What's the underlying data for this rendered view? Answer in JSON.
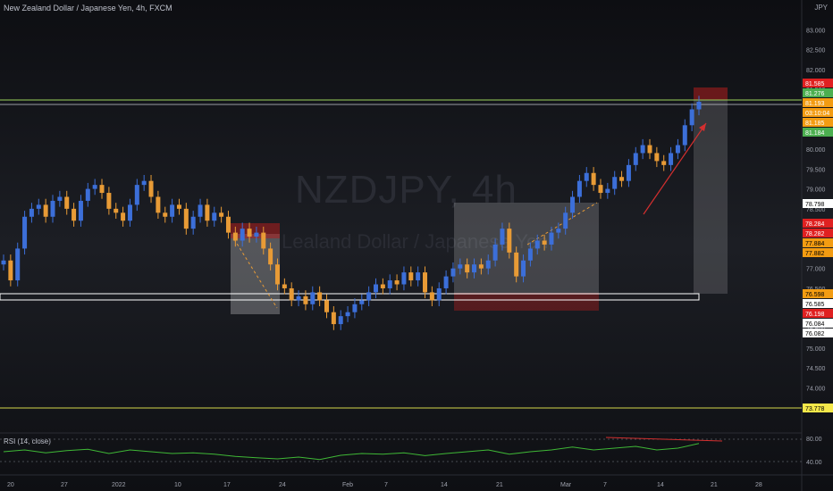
{
  "header": {
    "title": "New Zealand Dollar / Japanese Yen, 4h, FXCM",
    "currency": "JPY"
  },
  "watermark": {
    "symbol": "NZDJPY, 4h",
    "name": "Lealand Dollar / Japanese Yen"
  },
  "rsi": {
    "label": "RSI (14, close)",
    "ticks": [
      "80.00",
      "40.00"
    ]
  },
  "colors": {
    "up": "#3c6fd9",
    "down": "#e89b36",
    "rsi_line": "#3fb836",
    "resistance": "#9bd15b",
    "support_box": "#ffffff",
    "low_line": "#d6d84a",
    "arrow": "#d32f2f"
  },
  "chart_data": {
    "type": "candlestick",
    "title": "New Zealand Dollar / Japanese Yen, 4h, FXCM",
    "y_ticks": [
      "83.000",
      "82.500",
      "82.000",
      "81.500",
      "80.000",
      "79.500",
      "79.000",
      "78.500",
      "77.000",
      "76.500",
      "75.500",
      "75.000",
      "74.500",
      "74.000",
      "73.500"
    ],
    "x_ticks": [
      "20",
      "27",
      "2022",
      "10",
      "17",
      "24",
      "Feb",
      "7",
      "14",
      "21",
      "Mar",
      "7",
      "14",
      "21",
      "28"
    ],
    "ylim": [
      73.2,
      83.3
    ],
    "close_path": [
      [
        0,
        77.2
      ],
      [
        1,
        76.7
      ],
      [
        2,
        77.5
      ],
      [
        3,
        78.3
      ],
      [
        4,
        78.5
      ],
      [
        5,
        78.6
      ],
      [
        6,
        78.3
      ],
      [
        7,
        78.7
      ],
      [
        8,
        78.8
      ],
      [
        9,
        78.5
      ],
      [
        10,
        78.2
      ],
      [
        11,
        78.7
      ],
      [
        12,
        79.0
      ],
      [
        13,
        79.1
      ],
      [
        14,
        78.9
      ],
      [
        15,
        78.5
      ],
      [
        16,
        78.4
      ],
      [
        17,
        78.2
      ],
      [
        18,
        78.6
      ],
      [
        19,
        79.1
      ],
      [
        20,
        79.2
      ],
      [
        21,
        78.8
      ],
      [
        22,
        78.4
      ],
      [
        23,
        78.3
      ],
      [
        24,
        78.6
      ],
      [
        25,
        78.5
      ],
      [
        26,
        78.0
      ],
      [
        27,
        78.3
      ],
      [
        28,
        78.6
      ],
      [
        29,
        78.2
      ],
      [
        30,
        78.4
      ],
      [
        31,
        78.3
      ],
      [
        32,
        77.9
      ],
      [
        33,
        77.7
      ],
      [
        34,
        78.0
      ],
      [
        35,
        77.8
      ],
      [
        36,
        77.9
      ],
      [
        37,
        77.5
      ],
      [
        38,
        77.1
      ],
      [
        39,
        76.6
      ],
      [
        40,
        76.5
      ],
      [
        41,
        76.2
      ],
      [
        42,
        76.3
      ],
      [
        43,
        76.1
      ],
      [
        44,
        76.4
      ],
      [
        45,
        76.2
      ],
      [
        46,
        75.9
      ],
      [
        47,
        75.6
      ],
      [
        48,
        75.8
      ],
      [
        49,
        75.9
      ],
      [
        50,
        76.1
      ],
      [
        51,
        76.2
      ],
      [
        52,
        76.4
      ],
      [
        53,
        76.6
      ],
      [
        54,
        76.5
      ],
      [
        55,
        76.7
      ],
      [
        56,
        76.6
      ],
      [
        57,
        76.9
      ],
      [
        58,
        76.7
      ],
      [
        59,
        76.9
      ],
      [
        60,
        76.4
      ],
      [
        61,
        76.2
      ],
      [
        62,
        76.5
      ],
      [
        63,
        76.8
      ],
      [
        64,
        77.0
      ],
      [
        65,
        77.1
      ],
      [
        66,
        76.9
      ],
      [
        67,
        77.1
      ],
      [
        68,
        77.0
      ],
      [
        69,
        77.2
      ],
      [
        70,
        77.6
      ],
      [
        71,
        78.0
      ],
      [
        72,
        77.4
      ],
      [
        73,
        76.8
      ],
      [
        74,
        77.2
      ],
      [
        75,
        77.5
      ],
      [
        76,
        77.7
      ],
      [
        77,
        77.6
      ],
      [
        78,
        77.9
      ],
      [
        79,
        78.0
      ],
      [
        80,
        78.4
      ],
      [
        81,
        78.8
      ],
      [
        82,
        79.2
      ],
      [
        83,
        79.4
      ],
      [
        84,
        79.1
      ],
      [
        85,
        78.9
      ],
      [
        86,
        79.0
      ],
      [
        87,
        79.3
      ],
      [
        88,
        79.2
      ],
      [
        89,
        79.6
      ],
      [
        90,
        79.9
      ],
      [
        91,
        80.1
      ],
      [
        92,
        79.9
      ],
      [
        93,
        79.7
      ],
      [
        94,
        79.6
      ],
      [
        95,
        79.9
      ],
      [
        96,
        80.1
      ],
      [
        97,
        80.6
      ],
      [
        98,
        81.0
      ],
      [
        99,
        81.19
      ]
    ],
    "rsi_path": [
      [
        0,
        0.55
      ],
      [
        3,
        0.6
      ],
      [
        6,
        0.52
      ],
      [
        9,
        0.58
      ],
      [
        12,
        0.62
      ],
      [
        15,
        0.5
      ],
      [
        18,
        0.6
      ],
      [
        21,
        0.55
      ],
      [
        24,
        0.5
      ],
      [
        27,
        0.52
      ],
      [
        30,
        0.48
      ],
      [
        33,
        0.42
      ],
      [
        36,
        0.38
      ],
      [
        39,
        0.35
      ],
      [
        42,
        0.4
      ],
      [
        45,
        0.33
      ],
      [
        48,
        0.45
      ],
      [
        51,
        0.5
      ],
      [
        54,
        0.48
      ],
      [
        57,
        0.52
      ],
      [
        60,
        0.44
      ],
      [
        63,
        0.5
      ],
      [
        66,
        0.55
      ],
      [
        69,
        0.6
      ],
      [
        72,
        0.48
      ],
      [
        75,
        0.55
      ],
      [
        78,
        0.6
      ],
      [
        81,
        0.68
      ],
      [
        84,
        0.6
      ],
      [
        87,
        0.65
      ],
      [
        90,
        0.7
      ],
      [
        93,
        0.6
      ],
      [
        96,
        0.65
      ],
      [
        99,
        0.78
      ]
    ],
    "price_labels": [
      {
        "value": "81.585",
        "bg": "#e02020",
        "fg": "#ffffff"
      },
      {
        "value": "81.276",
        "bg": "#4caf50",
        "fg": "#ffffff"
      },
      {
        "value": "81.193",
        "bg": "#f39c12",
        "fg": "#ffffff"
      },
      {
        "value": "03:10:04",
        "bg": "#f39c12",
        "fg": "#ffffff"
      },
      {
        "value": "81.185",
        "bg": "#f39c12",
        "fg": "#ffffff"
      },
      {
        "value": "81.184",
        "bg": "#4caf50",
        "fg": "#ffffff"
      },
      {
        "value": "78.798",
        "bg": "#ffffff",
        "fg": "#000000"
      },
      {
        "value": "78.284",
        "bg": "#e02020",
        "fg": "#ffffff"
      },
      {
        "value": "78.282",
        "bg": "#e02020",
        "fg": "#ffffff"
      },
      {
        "value": "77.884",
        "bg": "#f39c12",
        "fg": "#000000"
      },
      {
        "value": "77.882",
        "bg": "#f39c12",
        "fg": "#000000"
      },
      {
        "value": "76.598",
        "bg": "#f39c12",
        "fg": "#000000"
      },
      {
        "value": "76.585",
        "bg": "#ffffff",
        "fg": "#000000"
      },
      {
        "value": "76.198",
        "bg": "#e02020",
        "fg": "#ffffff"
      },
      {
        "value": "76.084",
        "bg": "#ffffff",
        "fg": "#000000"
      },
      {
        "value": "76.082",
        "bg": "#ffffff",
        "fg": "#000000"
      },
      {
        "value": "73.778",
        "bg": "#f5e84a",
        "fg": "#000000"
      }
    ]
  }
}
